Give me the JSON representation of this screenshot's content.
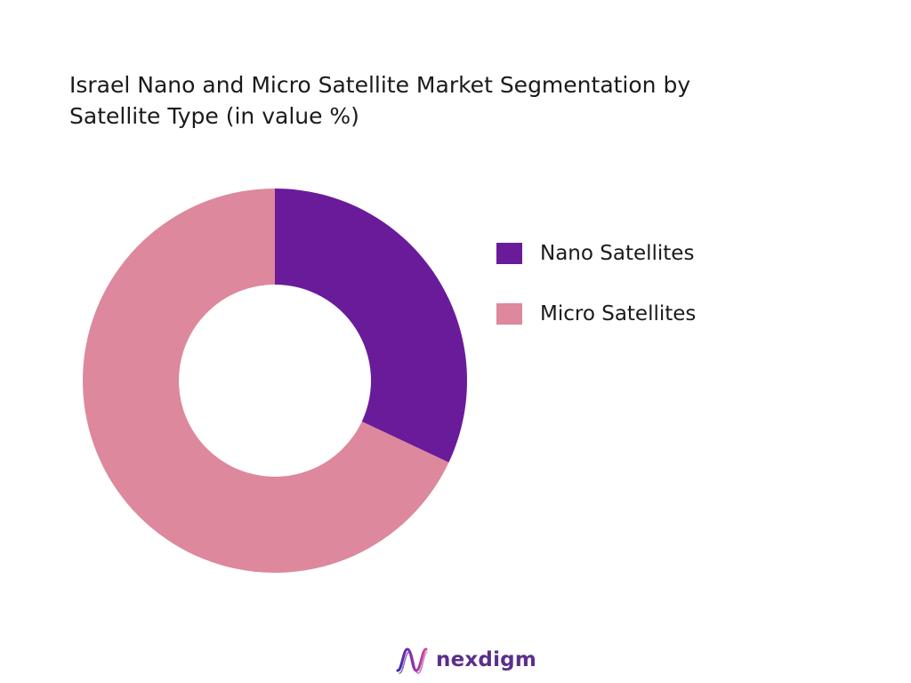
{
  "chart_data": {
    "type": "pie",
    "title": [
      "Israel Nano and Micro Satellite Market Segmentation by",
      "Satellite Type (in value %)"
    ],
    "donut": true,
    "categories": [
      "Nano Satellites",
      "Micro Satellites"
    ],
    "values": [
      32,
      68
    ],
    "unit": "%",
    "colors": [
      "#6a1b9a",
      "#dd889c"
    ],
    "legend": "right"
  },
  "brand": {
    "name": "nexdigm",
    "logo_icon": "nexdigm-logo-icon",
    "color": "#5a2f8a"
  }
}
